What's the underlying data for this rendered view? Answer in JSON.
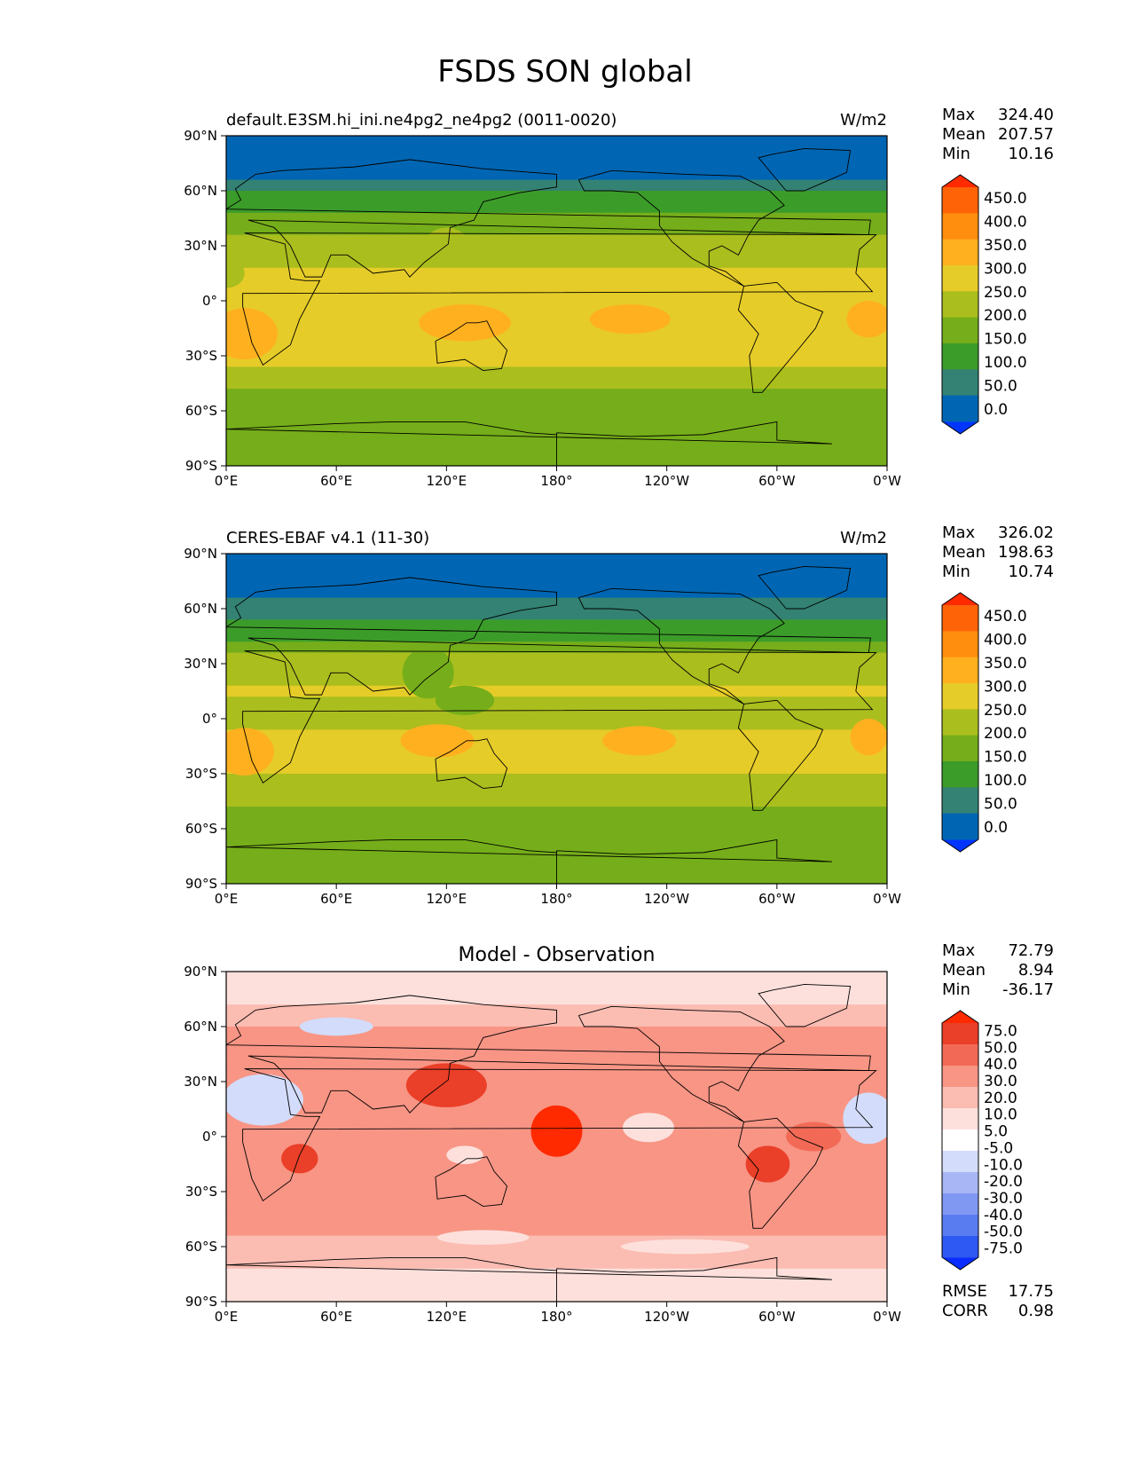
{
  "title": "FSDS SON global",
  "axis_ticks": {
    "lat": [
      "90°N",
      "60°N",
      "30°N",
      "0°",
      "30°S",
      "60°S",
      "90°S"
    ],
    "lon": [
      "0°E",
      "60°E",
      "120°E",
      "180°",
      "120°W",
      "60°W",
      "0°W"
    ]
  },
  "colors": {
    "field": [
      "#0035ff",
      "#0066b3",
      "#338273",
      "#3c9c2a",
      "#75ae1a",
      "#aabe1e",
      "#e6cc28",
      "#ffb01f",
      "#ff8d0e",
      "#ff6308",
      "#ff2a00"
    ],
    "diff": [
      "#0a2cff",
      "#2e59f2",
      "#5a7cf1",
      "#8198f3",
      "#a8b6f5",
      "#d3dcfa",
      "#ffffff",
      "#fde0dc",
      "#fbbcb2",
      "#f89585",
      "#f26a56",
      "#ea3f28",
      "#ff2a00"
    ]
  },
  "panels": [
    {
      "left_label": "default.E3SM.hi_ini.ne4pg2_ne4pg2 (0011-0020)",
      "units": "W/m2",
      "center_title": "",
      "stats": [
        {
          "label": "Max",
          "value": "324.40"
        },
        {
          "label": "Mean",
          "value": "207.57"
        },
        {
          "label": "Min",
          "value": "10.16"
        }
      ],
      "colorbar_labels": [
        "450.0",
        "400.0",
        "350.0",
        "300.0",
        "250.0",
        "200.0",
        "150.0",
        "100.0",
        "50.0",
        "0.0"
      ]
    },
    {
      "left_label": "CERES-EBAF v4.1 (11-30)",
      "units": "W/m2",
      "center_title": "",
      "stats": [
        {
          "label": "Max",
          "value": "326.02"
        },
        {
          "label": "Mean",
          "value": "198.63"
        },
        {
          "label": "Min",
          "value": "10.74"
        }
      ],
      "colorbar_labels": [
        "450.0",
        "400.0",
        "350.0",
        "300.0",
        "250.0",
        "200.0",
        "150.0",
        "100.0",
        "50.0",
        "0.0"
      ]
    },
    {
      "left_label": "",
      "units": "",
      "center_title": "Model - Observation",
      "stats": [
        {
          "label": "Max",
          "value": "72.79"
        },
        {
          "label": "Mean",
          "value": "8.94"
        },
        {
          "label": "Min",
          "value": "-36.17"
        }
      ],
      "colorbar_labels": [
        "75.0",
        "50.0",
        "40.0",
        "30.0",
        "20.0",
        "10.0",
        "5.0",
        "-5.0",
        "-10.0",
        "-20.0",
        "-30.0",
        "-40.0",
        "-50.0",
        "-75.0"
      ],
      "metrics": [
        {
          "label": "RMSE",
          "value": "17.75"
        },
        {
          "label": "CORR",
          "value": "0.98"
        }
      ]
    }
  ],
  "chart_data": {
    "type": "heatmap",
    "lat_range": [
      -90,
      90
    ],
    "lon_range": [
      0,
      360
    ],
    "panels": [
      {
        "field": "FSDS model",
        "zonal_profile": [
          {
            "lat": 90,
            "value": 40
          },
          {
            "lat": 70,
            "value": 45
          },
          {
            "lat": 60,
            "value": 90
          },
          {
            "lat": 50,
            "value": 140
          },
          {
            "lat": 40,
            "value": 180
          },
          {
            "lat": 30,
            "value": 220
          },
          {
            "lat": 15,
            "value": 265
          },
          {
            "lat": 0,
            "value": 270
          },
          {
            "lat": -15,
            "value": 285
          },
          {
            "lat": -30,
            "value": 275
          },
          {
            "lat": -40,
            "value": 235
          },
          {
            "lat": -55,
            "value": 185
          },
          {
            "lat": -70,
            "value": 195
          },
          {
            "lat": -90,
            "value": 190
          }
        ],
        "levels": [
          0,
          50,
          100,
          150,
          200,
          250,
          300,
          350,
          400,
          450
        ]
      },
      {
        "field": "FSDS observation",
        "zonal_profile": [
          {
            "lat": 90,
            "value": 40
          },
          {
            "lat": 70,
            "value": 40
          },
          {
            "lat": 60,
            "value": 80
          },
          {
            "lat": 50,
            "value": 120
          },
          {
            "lat": 40,
            "value": 170
          },
          {
            "lat": 30,
            "value": 215
          },
          {
            "lat": 15,
            "value": 250
          },
          {
            "lat": 0,
            "value": 240
          },
          {
            "lat": -15,
            "value": 270
          },
          {
            "lat": -30,
            "value": 260
          },
          {
            "lat": -40,
            "value": 220
          },
          {
            "lat": -55,
            "value": 175
          },
          {
            "lat": -70,
            "value": 185
          },
          {
            "lat": -90,
            "value": 185
          }
        ],
        "levels": [
          0,
          50,
          100,
          150,
          200,
          250,
          300,
          350,
          400,
          450
        ]
      },
      {
        "field": "Model - Observation",
        "zonal_profile": [
          {
            "lat": 90,
            "value": 0
          },
          {
            "lat": 70,
            "value": 5
          },
          {
            "lat": 60,
            "value": 10
          },
          {
            "lat": 45,
            "value": 15
          },
          {
            "lat": 30,
            "value": 15
          },
          {
            "lat": 15,
            "value": 12
          },
          {
            "lat": 0,
            "value": 10
          },
          {
            "lat": -15,
            "value": 12
          },
          {
            "lat": -30,
            "value": 12
          },
          {
            "lat": -45,
            "value": 12
          },
          {
            "lat": -60,
            "value": 8
          },
          {
            "lat": -75,
            "value": 3
          },
          {
            "lat": -90,
            "value": 0
          }
        ],
        "levels": [
          -75,
          -50,
          -40,
          -30,
          -20,
          -10,
          -5,
          5,
          10,
          20,
          30,
          40,
          50,
          75
        ]
      }
    ]
  }
}
